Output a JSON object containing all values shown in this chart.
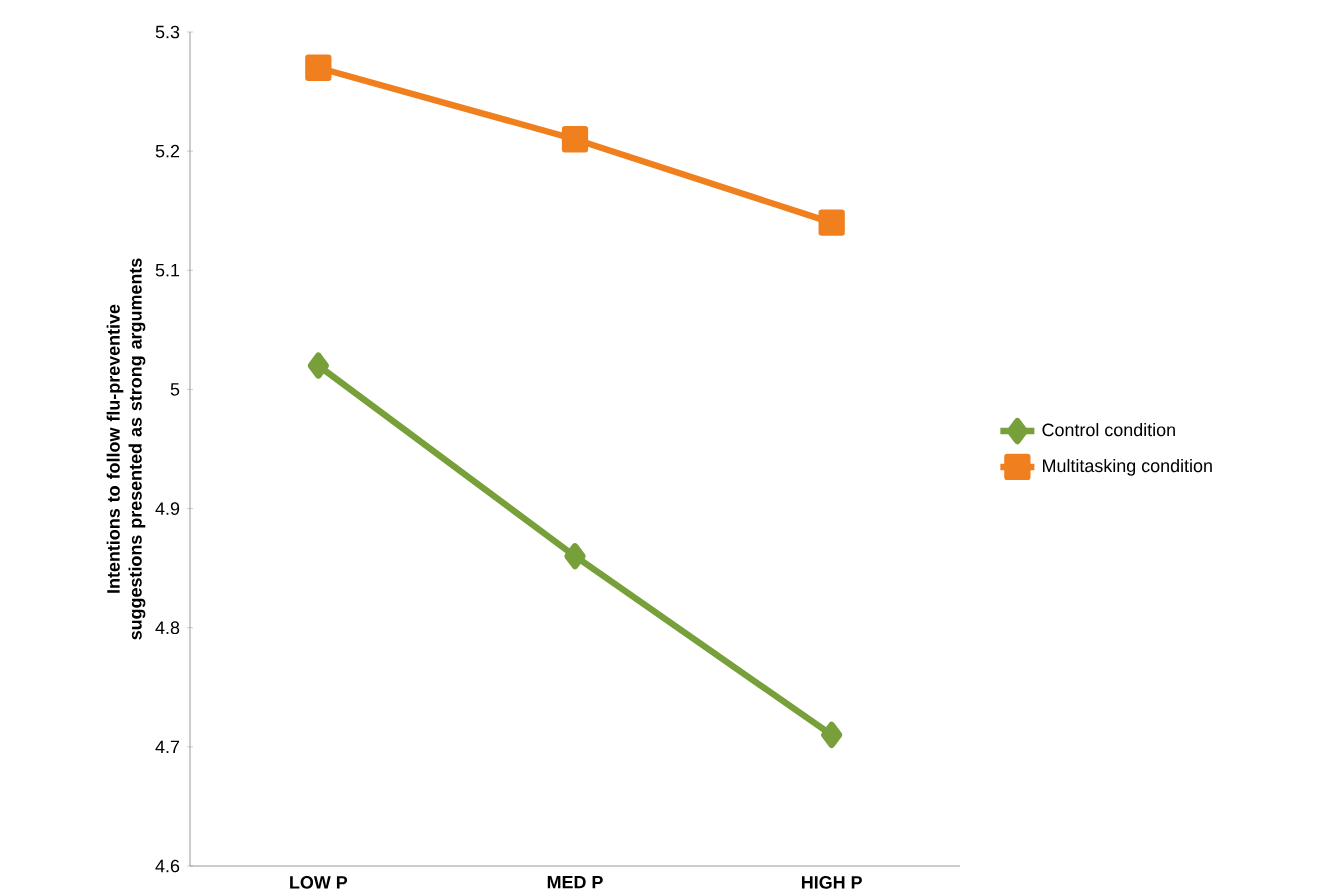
{
  "chart_data": {
    "type": "line",
    "ylabel": "Intentions to follow flu-preventive suggestions presented as strong arguments",
    "categories": [
      "LOW P",
      "MED P",
      "HIGH P"
    ],
    "series": [
      {
        "name": "Control condition",
        "color": "#77a03a",
        "marker": "diamond",
        "values": [
          5.02,
          4.86,
          4.71
        ]
      },
      {
        "name": "Multitasking condition",
        "color": "#f07f1e",
        "marker": "square",
        "values": [
          5.27,
          5.21,
          5.14
        ]
      }
    ],
    "ylim": [
      4.6,
      5.3
    ],
    "yticks": [
      4.6,
      4.7,
      4.8,
      4.9,
      5,
      5.1,
      5.2,
      5.3
    ],
    "grid": false,
    "legend": "right",
    "line_style": "solid"
  }
}
